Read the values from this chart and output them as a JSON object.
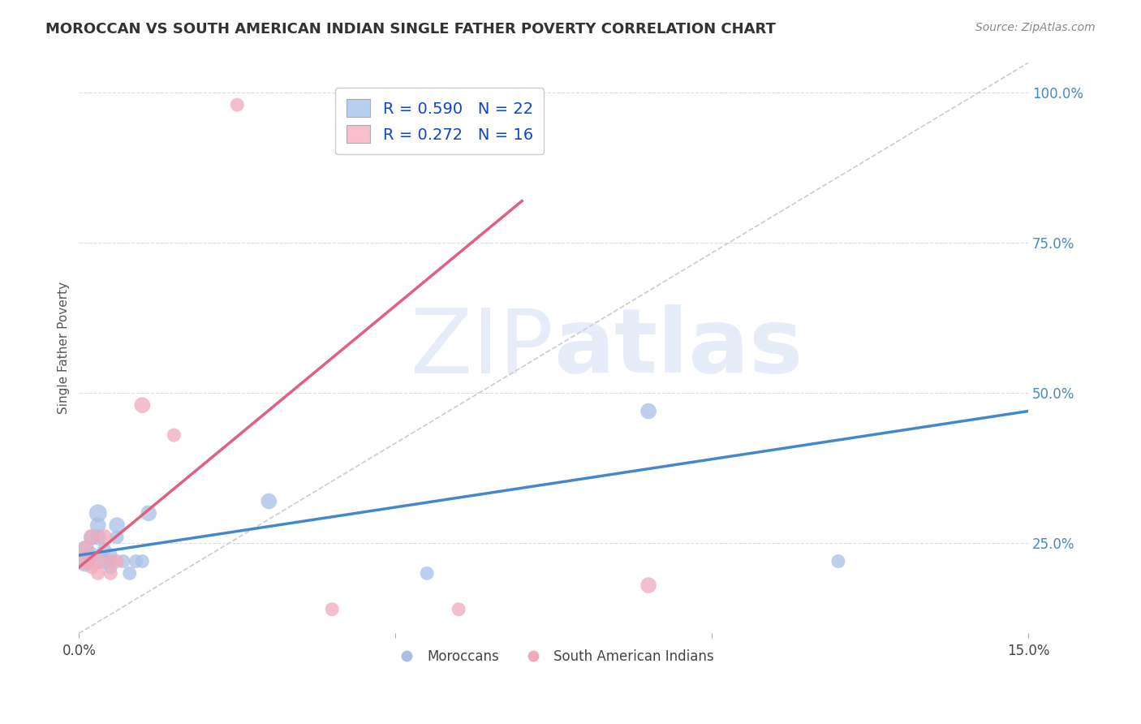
{
  "title": "MOROCCAN VS SOUTH AMERICAN INDIAN SINGLE FATHER POVERTY CORRELATION CHART",
  "source": "Source: ZipAtlas.com",
  "ylabel": "Single Father Poverty",
  "xlim": [
    0.0,
    0.15
  ],
  "ylim": [
    0.1,
    1.05
  ],
  "yticks": [
    0.25,
    0.5,
    0.75,
    1.0
  ],
  "ytick_labels": [
    "25.0%",
    "50.0%",
    "75.0%",
    "100.0%"
  ],
  "xticks": [
    0.0,
    0.05,
    0.1,
    0.15
  ],
  "xtick_labels": [
    "0.0%",
    "",
    "",
    "15.0%"
  ],
  "background_color": "#ffffff",
  "grid_color": "#dddddd",
  "watermark_zip": "ZIP",
  "watermark_atlas": "atlas",
  "watermark_color_zip": "#c8d8f0",
  "watermark_color_atlas": "#c8d8f0",
  "blue_color": "#a8c0e8",
  "pink_color": "#f0aabb",
  "blue_line_color": "#4488cc",
  "pink_line_color": "#e06080",
  "ref_line_color": "#cccccc",
  "legend_blue_label": "R = 0.590   N = 22",
  "legend_pink_label": "R = 0.272   N = 16",
  "legend_blue_face": "#b8d0f0",
  "legend_pink_face": "#f8c0cc",
  "moroccans_label": "Moroccans",
  "south_american_label": "South American Indians",
  "blue_x": [
    0.001,
    0.001,
    0.002,
    0.002,
    0.003,
    0.003,
    0.003,
    0.004,
    0.004,
    0.005,
    0.005,
    0.006,
    0.006,
    0.007,
    0.008,
    0.009,
    0.01,
    0.011,
    0.03,
    0.055,
    0.09,
    0.12
  ],
  "blue_y": [
    0.22,
    0.24,
    0.26,
    0.23,
    0.28,
    0.3,
    0.26,
    0.22,
    0.24,
    0.21,
    0.23,
    0.28,
    0.26,
    0.22,
    0.2,
    0.22,
    0.22,
    0.3,
    0.32,
    0.2,
    0.47,
    0.22
  ],
  "blue_sizes": [
    350,
    250,
    200,
    200,
    200,
    250,
    200,
    200,
    150,
    150,
    150,
    200,
    150,
    150,
    150,
    150,
    150,
    200,
    200,
    150,
    200,
    150
  ],
  "pink_x": [
    0.001,
    0.001,
    0.002,
    0.002,
    0.003,
    0.003,
    0.004,
    0.005,
    0.005,
    0.006,
    0.01,
    0.015,
    0.04,
    0.06,
    0.09,
    0.025
  ],
  "pink_y": [
    0.22,
    0.24,
    0.21,
    0.26,
    0.22,
    0.2,
    0.26,
    0.22,
    0.2,
    0.22,
    0.48,
    0.43,
    0.14,
    0.14,
    0.18,
    0.98
  ],
  "pink_sizes": [
    250,
    200,
    150,
    200,
    200,
    150,
    200,
    150,
    150,
    150,
    200,
    150,
    150,
    150,
    200,
    150
  ]
}
